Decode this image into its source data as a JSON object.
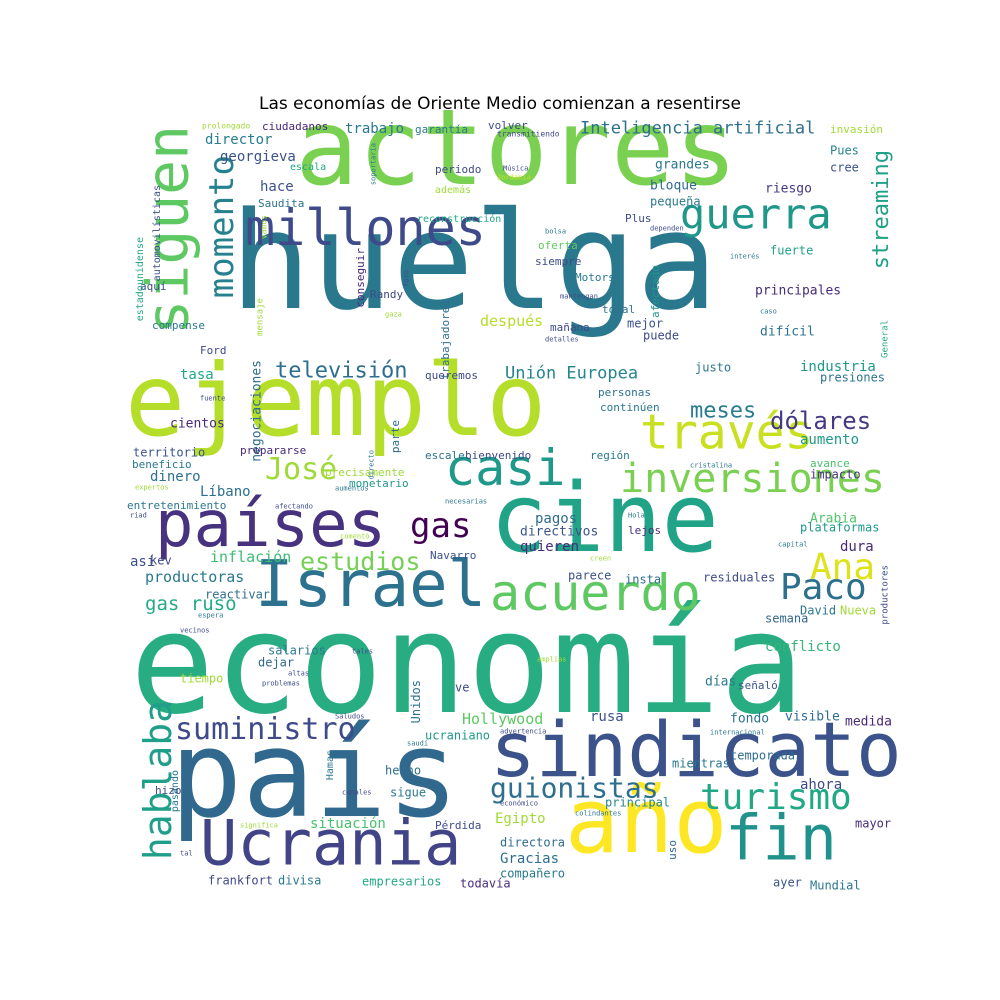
{
  "chart_data": {
    "type": "wordcloud",
    "title": "Las economías de Oriente Medio comienzan a resentirse",
    "colormap": "viridis",
    "background": "#ffffff",
    "words": [
      {
        "text": "economía",
        "weight": 1.0,
        "color": "#27ad81"
      },
      {
        "text": "huelga",
        "weight": 0.98,
        "color": "#2a788e"
      },
      {
        "text": "país",
        "weight": 0.9,
        "color": "#31688e"
      },
      {
        "text": "actores",
        "weight": 0.78,
        "color": "#7ad151"
      },
      {
        "text": "ejemplo",
        "weight": 0.76,
        "color": "#b5de2b"
      },
      {
        "text": "cine",
        "weight": 0.7,
        "color": "#20a386"
      },
      {
        "text": "año",
        "weight": 0.66,
        "color": "#fde725"
      },
      {
        "text": "sindicato",
        "weight": 0.56,
        "color": "#3b528b"
      },
      {
        "text": "Israel",
        "weight": 0.48,
        "color": "#2c728e"
      },
      {
        "text": "Ucrania",
        "weight": 0.46,
        "color": "#414487"
      },
      {
        "text": "fin",
        "weight": 0.46,
        "color": "#21918c"
      },
      {
        "text": "países",
        "weight": 0.46,
        "color": "#46327e"
      },
      {
        "text": "siguen",
        "weight": 0.43,
        "color": "#5ec962"
      },
      {
        "text": "millones",
        "weight": 0.36,
        "color": "#3e4a89"
      },
      {
        "text": "acuerdo",
        "weight": 0.36,
        "color": "#5ec962"
      },
      {
        "text": "casi",
        "weight": 0.36,
        "color": "#1f9a8a"
      },
      {
        "text": "través",
        "weight": 0.34,
        "color": "#c8e020"
      },
      {
        "text": "inversiones",
        "weight": 0.28,
        "color": "#7ad151"
      },
      {
        "text": "guerra",
        "weight": 0.3,
        "color": "#1f988b"
      },
      {
        "text": "hablaba",
        "weight": 0.28,
        "color": "#1f9e89"
      },
      {
        "text": "turismo",
        "weight": 0.26,
        "color": "#22a884"
      },
      {
        "text": "Paco",
        "weight": 0.26,
        "color": "#2d708e"
      },
      {
        "text": "Ana",
        "weight": 0.26,
        "color": "#dde318"
      },
      {
        "text": "momento",
        "weight": 0.24,
        "color": "#26818e"
      },
      {
        "text": "gas",
        "weight": 0.26,
        "color": "#440154"
      },
      {
        "text": "José",
        "weight": 0.22,
        "color": "#a0da39"
      },
      {
        "text": "suministro",
        "weight": 0.22,
        "color": "#3e4a89"
      },
      {
        "text": "guionistas",
        "weight": 0.2,
        "color": "#2e6e8e"
      },
      {
        "text": "estudios",
        "weight": 0.18,
        "color": "#75d054"
      },
      {
        "text": "streaming",
        "weight": 0.16,
        "color": "#1fa187"
      },
      {
        "text": "dólares",
        "weight": 0.16,
        "color": "#443983"
      },
      {
        "text": "televisión",
        "weight": 0.16,
        "color": "#2e6e8e"
      },
      {
        "text": "meses",
        "weight": 0.15,
        "color": "#287c8e"
      },
      {
        "text": "gas ruso",
        "weight": 0.14,
        "color": "#25ab82"
      },
      {
        "text": "Inteligencia artificial",
        "weight": 0.13,
        "color": "#2d708e"
      },
      {
        "text": "Unión Europea",
        "weight": 0.13,
        "color": "#25858e"
      },
      {
        "text": "productoras",
        "weight": 0.12,
        "color": "#2a788e"
      },
      {
        "text": "inflación",
        "weight": 0.12,
        "color": "#3dbc74"
      },
      {
        "text": "Hollywood",
        "weight": 0.12,
        "color": "#5ec962"
      },
      {
        "text": "situación",
        "weight": 0.11,
        "color": "#48c16e"
      },
      {
        "text": "georgieva",
        "weight": 0.11,
        "color": "#3b528b"
      },
      {
        "text": "trabajo",
        "weight": 0.11,
        "color": "#2a788e"
      },
      {
        "text": "negociaciones",
        "weight": 0.11,
        "color": "#2f6c8e"
      },
      {
        "text": "quieren",
        "weight": 0.1,
        "color": "#472d7b"
      },
      {
        "text": "directivos",
        "weight": 0.1,
        "color": "#3b528b"
      },
      {
        "text": "pagos",
        "weight": 0.1,
        "color": "#2f6c8e"
      },
      {
        "text": "Arabia",
        "weight": 0.1,
        "color": "#52c569"
      },
      {
        "text": "industria",
        "weight": 0.1,
        "color": "#1f988b"
      },
      {
        "text": "aumento",
        "weight": 0.1,
        "color": "#1f9a8a"
      },
      {
        "text": "conflicto",
        "weight": 0.1,
        "color": "#35b779"
      },
      {
        "text": "fondo",
        "weight": 0.1,
        "color": "#2c728e"
      },
      {
        "text": "rusa",
        "weight": 0.1,
        "color": "#3b528b"
      },
      {
        "text": "Egipto",
        "weight": 0.1,
        "color": "#a0da39"
      },
      {
        "text": "Gracias",
        "weight": 0.1,
        "color": "#2e6e8e"
      },
      {
        "text": "después",
        "weight": 0.1,
        "color": "#b5de2b"
      },
      {
        "text": "director",
        "weight": 0.1,
        "color": "#287c8e"
      },
      {
        "text": "hace",
        "weight": 0.1,
        "color": "#3b528b"
      },
      {
        "text": "tasa",
        "weight": 0.1,
        "color": "#22a884"
      },
      {
        "text": "cientos",
        "weight": 0.09,
        "color": "#482878"
      },
      {
        "text": "dinero",
        "weight": 0.09,
        "color": "#2c728e"
      },
      {
        "text": "Líbano",
        "weight": 0.09,
        "color": "#2d708e"
      },
      {
        "text": "así",
        "weight": 0.09,
        "color": "#3b528b"
      },
      {
        "text": "dura",
        "weight": 0.09,
        "color": "#482878"
      },
      {
        "text": "ahora",
        "weight": 0.09,
        "color": "#3e4a89"
      },
      {
        "text": "medida",
        "weight": 0.09,
        "color": "#482878"
      },
      {
        "text": "visible",
        "weight": 0.09,
        "color": "#2f6c8e"
      },
      {
        "text": "principales",
        "weight": 0.09,
        "color": "#472d7b"
      },
      {
        "text": "riesgo",
        "weight": 0.09,
        "color": "#443983"
      },
      {
        "text": "grandes",
        "weight": 0.09,
        "color": "#2a788e"
      },
      {
        "text": "bloque",
        "weight": 0.09,
        "color": "#2f6c8e"
      },
      {
        "text": "pequeña",
        "weight": 0.08,
        "color": "#2a788e"
      },
      {
        "text": "Pues",
        "weight": 0.08,
        "color": "#25858e"
      },
      {
        "text": "cree",
        "weight": 0.08,
        "color": "#3b528b"
      },
      {
        "text": "fuerte",
        "weight": 0.08,
        "color": "#1fa187"
      },
      {
        "text": "difícil",
        "weight": 0.08,
        "color": "#2c728e"
      },
      {
        "text": "puede",
        "weight": 0.08,
        "color": "#3e4a89"
      },
      {
        "text": "mejor",
        "weight": 0.08,
        "color": "#3b528b"
      },
      {
        "text": "justo",
        "weight": 0.08,
        "color": "#2a788e"
      },
      {
        "text": "presiones",
        "weight": 0.08,
        "color": "#2c728e"
      },
      {
        "text": "impacto",
        "weight": 0.08,
        "color": "#46327e"
      },
      {
        "text": "plataformas",
        "weight": 0.08,
        "color": "#1f988b"
      },
      {
        "text": "avance",
        "weight": 0.07,
        "color": "#48c16e"
      },
      {
        "text": "parece",
        "weight": 0.08,
        "color": "#3b528b"
      },
      {
        "text": "insta",
        "weight": 0.08,
        "color": "#2e6e8e"
      },
      {
        "text": "residuales",
        "weight": 0.08,
        "color": "#3e4a89"
      },
      {
        "text": "David",
        "weight": 0.07,
        "color": "#2a788e"
      },
      {
        "text": "Nueva",
        "weight": 0.07,
        "color": "#a0da39"
      },
      {
        "text": "semana",
        "weight": 0.07,
        "color": "#31688e"
      },
      {
        "text": "días",
        "weight": 0.08,
        "color": "#2a788e"
      },
      {
        "text": "señaló",
        "weight": 0.06,
        "color": "#3b528b"
      },
      {
        "text": "temporada",
        "weight": 0.07,
        "color": "#2f6c8e"
      },
      {
        "text": "mientras",
        "weight": 0.07,
        "color": "#2a788e"
      },
      {
        "text": "principal",
        "weight": 0.07,
        "color": "#25858e"
      },
      {
        "text": "mayor",
        "weight": 0.07,
        "color": "#472d7b"
      },
      {
        "text": "ayer",
        "weight": 0.07,
        "color": "#3b528b"
      },
      {
        "text": "Mundial",
        "weight": 0.07,
        "color": "#2a788e"
      },
      {
        "text": "uso",
        "weight": 0.06,
        "color": "#31688e"
      },
      {
        "text": "directora",
        "weight": 0.07,
        "color": "#2f6c8e"
      },
      {
        "text": "compañero",
        "weight": 0.07,
        "color": "#2a788e"
      },
      {
        "text": "todavía",
        "weight": 0.07,
        "color": "#472d7b"
      },
      {
        "text": "empresarios",
        "weight": 0.07,
        "color": "#22a884"
      },
      {
        "text": "divisa",
        "weight": 0.07,
        "color": "#2a788e"
      },
      {
        "text": "frankfort",
        "weight": 0.07,
        "color": "#3e4a89"
      },
      {
        "text": "sigue",
        "weight": 0.07,
        "color": "#2a788e"
      },
      {
        "text": "hecho",
        "weight": 0.07,
        "color": "#2e6e8e"
      },
      {
        "text": "ucraniano",
        "weight": 0.07,
        "color": "#1f988b"
      },
      {
        "text": "Unidos",
        "weight": 0.07,
        "color": "#2c728e"
      },
      {
        "text": "ve",
        "weight": 0.07,
        "color": "#3e4a89"
      },
      {
        "text": "salarios",
        "weight": 0.07,
        "color": "#2a788e"
      },
      {
        "text": "dejar",
        "weight": 0.07,
        "color": "#31688e"
      },
      {
        "text": "tiempo",
        "weight": 0.07,
        "color": "#a0da39"
      },
      {
        "text": "reactivar",
        "weight": 0.07,
        "color": "#2e6e8e"
      },
      {
        "text": "kev",
        "weight": 0.07,
        "color": "#3e4a89"
      },
      {
        "text": "entretenimiento",
        "weight": 0.07,
        "color": "#2a788e"
      },
      {
        "text": "territorio",
        "weight": 0.07,
        "color": "#3b528b"
      },
      {
        "text": "beneficio",
        "weight": 0.06,
        "color": "#2a788e"
      },
      {
        "text": "prepararse",
        "weight": 0.07,
        "color": "#482878"
      },
      {
        "text": "escale",
        "weight": 0.07,
        "color": "#2c728e"
      },
      {
        "text": "bienvenido",
        "weight": 0.07,
        "color": "#3e4a89"
      },
      {
        "text": "región",
        "weight": 0.07,
        "color": "#2a788e"
      },
      {
        "text": "parte",
        "weight": 0.07,
        "color": "#2f6c8e"
      },
      {
        "text": "personas",
        "weight": 0.07,
        "color": "#2c728e"
      },
      {
        "text": "continúen",
        "weight": 0.07,
        "color": "#2a788e"
      },
      {
        "text": "monetario",
        "weight": 0.06,
        "color": "#1f988b"
      },
      {
        "text": "precisamente",
        "weight": 0.06,
        "color": "#a0da39"
      },
      {
        "text": "Navarro",
        "weight": 0.07,
        "color": "#3b528b"
      },
      {
        "text": "lejos",
        "weight": 0.07,
        "color": "#472d7b"
      },
      {
        "text": "total",
        "weight": 0.07,
        "color": "#2c728e"
      },
      {
        "text": "mañana",
        "weight": 0.07,
        "color": "#3e4a89"
      },
      {
        "text": "afectado",
        "weight": 0.07,
        "color": "#1f988b"
      },
      {
        "text": "Motors",
        "weight": 0.07,
        "color": "#2a788e"
      },
      {
        "text": "siempre",
        "weight": 0.07,
        "color": "#3e4a89"
      },
      {
        "text": "oferta",
        "weight": 0.07,
        "color": "#5ec962"
      },
      {
        "text": "conseguir",
        "weight": 0.06,
        "color": "#482878"
      },
      {
        "text": "Randy",
        "weight": 0.07,
        "color": "#3e4a89"
      },
      {
        "text": "trabajadores",
        "weight": 0.06,
        "color": "#2e6e8e"
      },
      {
        "text": "queremos",
        "weight": 0.06,
        "color": "#3e4a89"
      },
      {
        "text": "compense",
        "weight": 0.07,
        "color": "#2a788e"
      },
      {
        "text": "aquí",
        "weight": 0.07,
        "color": "#3b528b"
      },
      {
        "text": "Ford",
        "weight": 0.07,
        "color": "#3e4a89"
      },
      {
        "text": "Saudita",
        "weight": 0.07,
        "color": "#2c728e"
      },
      {
        "text": "escala",
        "weight": 0.06,
        "color": "#22a884"
      },
      {
        "text": "periodo",
        "weight": 0.07,
        "color": "#3e4a89"
      },
      {
        "text": "además",
        "weight": 0.06,
        "color": "#a0da39"
      },
      {
        "text": "reconstrucción",
        "weight": 0.06,
        "color": "#22a884"
      },
      {
        "text": "Plus",
        "weight": 0.07,
        "color": "#3e4a89"
      },
      {
        "text": "garantía",
        "weight": 0.07,
        "color": "#2a788e"
      },
      {
        "text": "ciudadanos",
        "weight": 0.07,
        "color": "#482878"
      },
      {
        "text": "volver",
        "weight": 0.07,
        "color": "#3e4a89"
      },
      {
        "text": "invasión",
        "weight": 0.07,
        "color": "#a0da39"
      },
      {
        "text": "estadounidense",
        "weight": 0.06,
        "color": "#22a884"
      },
      {
        "text": "automovilísticas",
        "weight": 0.06,
        "color": "#3b528b"
      },
      {
        "text": "General",
        "weight": 0.05,
        "color": "#22a884"
      },
      {
        "text": "productores",
        "weight": 0.05,
        "color": "#3e4a89"
      },
      {
        "text": "Hamas",
        "weight": 0.06,
        "color": "#2a788e"
      },
      {
        "text": "pasando",
        "weight": 0.06,
        "color": "#2a788e"
      },
      {
        "text": "hizo",
        "weight": 0.06,
        "color": "#3e4a89"
      },
      {
        "text": "Pérdida",
        "weight": 0.06,
        "color": "#3e4a89"
      },
      {
        "text": "mensaje",
        "weight": 0.05,
        "color": "#a0da39"
      },
      {
        "text": "vamos",
        "weight": 0.04,
        "color": "#a0da39"
      },
      {
        "text": "prolongado",
        "weight": 0.04,
        "color": "#a0da39"
      },
      {
        "text": "transmitiendo",
        "weight": 0.04,
        "color": "#3e4a89"
      },
      {
        "text": "soportaría",
        "weight": 0.03,
        "color": "#2a788e"
      },
      {
        "text": "Música",
        "weight": 0.03,
        "color": "#3e4a89"
      },
      {
        "text": "Jordania",
        "weight": 0.03,
        "color": "#c8e020"
      },
      {
        "text": "bolsa",
        "weight": 0.03,
        "color": "#2a788e"
      },
      {
        "text": "dependen",
        "weight": 0.03,
        "color": "#3e4a89"
      },
      {
        "text": "interés",
        "weight": 0.03,
        "color": "#2a788e"
      },
      {
        "text": "foro",
        "weight": 0.03,
        "color": "#3e4a89"
      },
      {
        "text": "mantengan",
        "weight": 0.03,
        "color": "#3e4a89"
      },
      {
        "text": "gaza",
        "weight": 0.03,
        "color": "#a0da39"
      },
      {
        "text": "caso",
        "weight": 0.03,
        "color": "#2a788e"
      },
      {
        "text": "detalles",
        "weight": 0.03,
        "color": "#3e4a89"
      },
      {
        "text": "fuente",
        "weight": 0.03,
        "color": "#3e4a89"
      },
      {
        "text": "directo",
        "weight": 0.03,
        "color": "#2a788e"
      },
      {
        "text": "expertos",
        "weight": 0.03,
        "color": "#a0da39"
      },
      {
        "text": "cristalina",
        "weight": 0.03,
        "color": "#2a788e"
      },
      {
        "text": "necesarias",
        "weight": 0.03,
        "color": "#2a788e"
      },
      {
        "text": "afectando",
        "weight": 0.03,
        "color": "#3e4a89"
      },
      {
        "text": "riad",
        "weight": 0.03,
        "color": "#3e4a89"
      },
      {
        "text": "comentó",
        "weight": 0.03,
        "color": "#a0da39"
      },
      {
        "text": "Hola",
        "weight": 0.03,
        "color": "#2a788e"
      },
      {
        "text": "capital",
        "weight": 0.03,
        "color": "#2a788e"
      },
      {
        "text": "creen",
        "weight": 0.03,
        "color": "#a0da39"
      },
      {
        "text": "espera",
        "weight": 0.03,
        "color": "#2a788e"
      },
      {
        "text": "vecinos",
        "weight": 0.03,
        "color": "#3e4a89"
      },
      {
        "text": "tales",
        "weight": 0.03,
        "color": "#3e4a89"
      },
      {
        "text": "altas",
        "weight": 0.03,
        "color": "#3e4a89"
      },
      {
        "text": "problemas",
        "weight": 0.03,
        "color": "#3e4a89"
      },
      {
        "text": "amplias",
        "weight": 0.03,
        "color": "#a0da39"
      },
      {
        "text": "Saludos",
        "weight": 0.03,
        "color": "#3e4a89"
      },
      {
        "text": "saudí",
        "weight": 0.03,
        "color": "#2a788e"
      },
      {
        "text": "advertencia",
        "weight": 0.03,
        "color": "#3e4a89"
      },
      {
        "text": "internacional",
        "weight": 0.03,
        "color": "#2a788e"
      },
      {
        "text": "canales",
        "weight": 0.03,
        "color": "#3e4a89"
      },
      {
        "text": "económico",
        "weight": 0.03,
        "color": "#3e4a89"
      },
      {
        "text": "colindantes",
        "weight": 0.03,
        "color": "#2a788e"
      },
      {
        "text": "significa",
        "weight": 0.03,
        "color": "#a0da39"
      },
      {
        "text": "tal",
        "weight": 0.03,
        "color": "#3e4a89"
      },
      {
        "text": "aumentos",
        "weight": 0.03,
        "color": "#2a788e"
      }
    ]
  }
}
